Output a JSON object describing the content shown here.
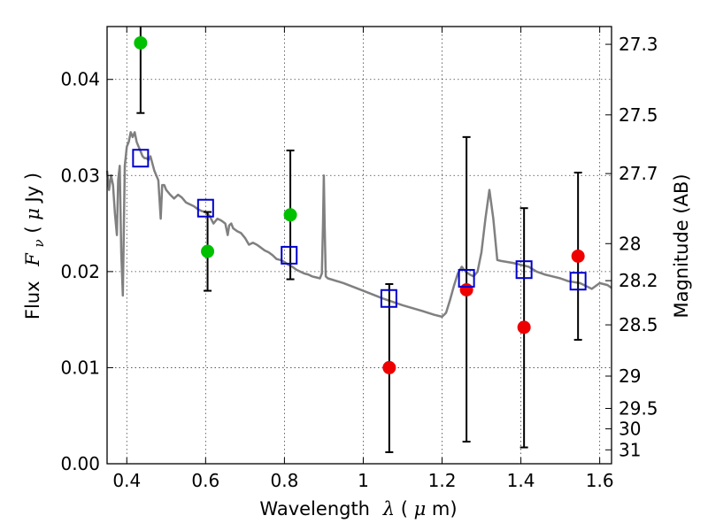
{
  "colors": {
    "model_curve": "#808080",
    "photometry_blue_band": "#00c000",
    "photometry_red_band": "#ee0000",
    "model_photometry": "#0000cc",
    "error_bar": "#000000",
    "axis": "#000000"
  },
  "chart_data": {
    "type": "scatter",
    "title": "",
    "xlabel": {
      "prefix": "Wavelength",
      "symbol": "λ",
      "unit_open": " (",
      "unit_mu": "μ",
      "unit_rest": "m)"
    },
    "ylabel": {
      "prefix": "Flux",
      "symbol": "F",
      "subscript": "ν",
      "unit_open": " ( ",
      "unit_mu": "μ",
      "unit_rest": "Jy )"
    },
    "y2label": "Magnitude (AB)",
    "xlim": [
      0.35,
      1.63
    ],
    "ylim": [
      0.0,
      0.0455
    ],
    "grid": true,
    "x_ticks": [
      {
        "value": 0.4,
        "label": "0.4"
      },
      {
        "value": 0.6,
        "label": "0.6"
      },
      {
        "value": 0.8,
        "label": "0.8"
      },
      {
        "value": 1.0,
        "label": "1"
      },
      {
        "value": 1.2,
        "label": "1.2"
      },
      {
        "value": 1.4,
        "label": "1.4"
      },
      {
        "value": 1.6,
        "label": "1.6"
      }
    ],
    "y_ticks": [
      {
        "value": 0.0,
        "label": "0.00"
      },
      {
        "value": 0.01,
        "label": "0.01"
      },
      {
        "value": 0.02,
        "label": "0.02"
      },
      {
        "value": 0.03,
        "label": "0.03"
      },
      {
        "value": 0.04,
        "label": "0.04"
      }
    ],
    "magnitude_ticks": [
      {
        "value": 27.3,
        "label": "27.3"
      },
      {
        "value": 27.5,
        "label": "27.5"
      },
      {
        "value": 27.7,
        "label": "27.7"
      },
      {
        "value": 28.0,
        "label": "28"
      },
      {
        "value": 28.2,
        "label": "28.2"
      },
      {
        "value": 28.5,
        "label": "28.5"
      },
      {
        "value": 29.0,
        "label": "29"
      },
      {
        "value": 29.5,
        "label": "29.5"
      },
      {
        "value": 30.0,
        "label": "30"
      },
      {
        "value": 31.0,
        "label": "31"
      }
    ],
    "model_spectrum": {
      "x": [
        0.35,
        0.355,
        0.36,
        0.365,
        0.37,
        0.375,
        0.378,
        0.382,
        0.386,
        0.39,
        0.395,
        0.4,
        0.405,
        0.41,
        0.415,
        0.42,
        0.425,
        0.43,
        0.435,
        0.44,
        0.445,
        0.45,
        0.455,
        0.46,
        0.47,
        0.48,
        0.486,
        0.49,
        0.495,
        0.5,
        0.51,
        0.52,
        0.53,
        0.54,
        0.55,
        0.56,
        0.57,
        0.58,
        0.59,
        0.6,
        0.61,
        0.62,
        0.63,
        0.64,
        0.65,
        0.656,
        0.66,
        0.665,
        0.67,
        0.68,
        0.69,
        0.7,
        0.71,
        0.72,
        0.73,
        0.74,
        0.75,
        0.76,
        0.77,
        0.78,
        0.79,
        0.8,
        0.81,
        0.82,
        0.83,
        0.84,
        0.85,
        0.86,
        0.87,
        0.88,
        0.89,
        0.895,
        0.898,
        0.9,
        0.902,
        0.905,
        0.91,
        0.95,
        1.0,
        1.05,
        1.1,
        1.15,
        1.18,
        1.2,
        1.21,
        1.22,
        1.23,
        1.24,
        1.25,
        1.26,
        1.27,
        1.28,
        1.29,
        1.3,
        1.31,
        1.32,
        1.33,
        1.34,
        1.35,
        1.38,
        1.4,
        1.42,
        1.44,
        1.46,
        1.48,
        1.5,
        1.52,
        1.55,
        1.58,
        1.6,
        1.62,
        1.63
      ],
      "y": [
        0.0305,
        0.0285,
        0.03,
        0.029,
        0.026,
        0.0238,
        0.0295,
        0.031,
        0.022,
        0.0175,
        0.031,
        0.033,
        0.0335,
        0.0345,
        0.034,
        0.0345,
        0.0335,
        0.033,
        0.0325,
        0.032,
        0.0318,
        0.0318,
        0.0316,
        0.032,
        0.0305,
        0.0295,
        0.0255,
        0.029,
        0.029,
        0.0285,
        0.028,
        0.0276,
        0.028,
        0.0277,
        0.0272,
        0.027,
        0.0268,
        0.0265,
        0.0263,
        0.0262,
        0.0258,
        0.025,
        0.0255,
        0.0253,
        0.025,
        0.0238,
        0.0248,
        0.025,
        0.0245,
        0.0242,
        0.024,
        0.0235,
        0.0228,
        0.023,
        0.0228,
        0.0225,
        0.0222,
        0.022,
        0.0217,
        0.0213,
        0.0212,
        0.021,
        0.0207,
        0.0205,
        0.0202,
        0.02,
        0.0198,
        0.0197,
        0.0195,
        0.0194,
        0.0193,
        0.0198,
        0.025,
        0.03,
        0.025,
        0.0195,
        0.0193,
        0.0188,
        0.018,
        0.0172,
        0.0165,
        0.0159,
        0.0155,
        0.0153,
        0.0157,
        0.017,
        0.0185,
        0.0198,
        0.0205,
        0.02,
        0.0197,
        0.0195,
        0.02,
        0.022,
        0.0255,
        0.0285,
        0.0255,
        0.0212,
        0.0211,
        0.0209,
        0.0207,
        0.0205,
        0.02,
        0.0197,
        0.0195,
        0.0193,
        0.019,
        0.0188,
        0.0182,
        0.0188,
        0.0186,
        0.0183
      ]
    },
    "series": [
      {
        "role": "photometry-blue-bands",
        "marker": "circle",
        "x": [
          0.435,
          0.605,
          0.815
        ],
        "y": [
          0.0438,
          0.0221,
          0.0259
        ],
        "err_low": [
          0.0365,
          0.018,
          0.0192
        ],
        "err_high": [
          0.0455,
          0.0262,
          0.0326
        ]
      },
      {
        "role": "photometry-red-bands",
        "marker": "circle",
        "x": [
          1.066,
          1.262,
          1.408,
          1.545
        ],
        "y": [
          0.01,
          0.0181,
          0.0142,
          0.0216
        ],
        "err_low": [
          0.0012,
          0.0023,
          0.0017,
          0.0129
        ],
        "err_high": [
          0.0187,
          0.034,
          0.0266,
          0.0303
        ]
      },
      {
        "role": "model-photometry",
        "marker": "square",
        "x": [
          0.435,
          0.6,
          0.812,
          1.065,
          1.262,
          1.408,
          1.545
        ],
        "y": [
          0.0318,
          0.0266,
          0.0217,
          0.0172,
          0.0193,
          0.0202,
          0.019
        ]
      }
    ]
  }
}
